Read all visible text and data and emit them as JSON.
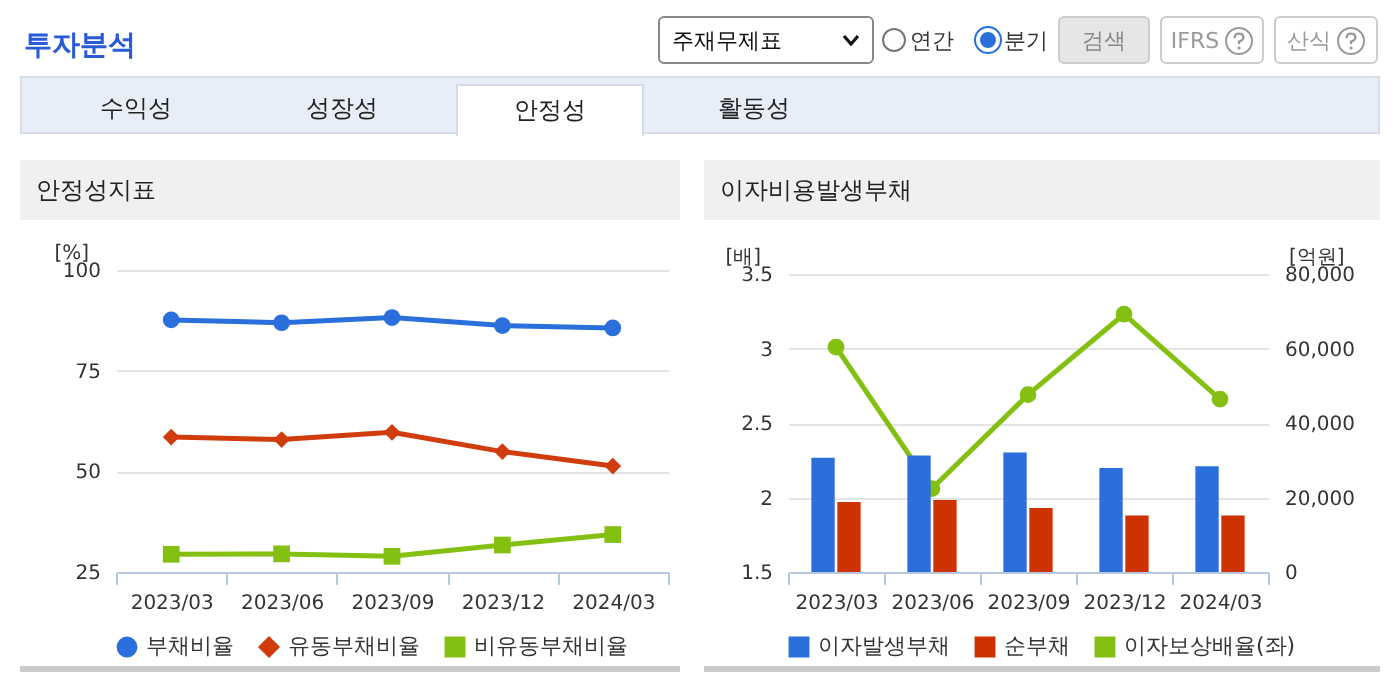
{
  "chart_data": [
    {
      "type": "other",
      "title": "투자분석",
      "annotations": [
        "주재무제표",
        "연간",
        "분기",
        "검색",
        "IFRS",
        "산식",
        "수익성",
        "성장성",
        "안정성",
        "활동성"
      ]
    },
    {
      "type": "line",
      "title": "안정성지표",
      "ylabel": "[%]",
      "categories": [
        "2023/03",
        "2023/06",
        "2023/09",
        "2023/12",
        "2024/03"
      ],
      "series": [
        {
          "name": "부채비율",
          "color": "#2a6fdb",
          "marker": "circle",
          "values": [
            87.6,
            86.9,
            88.2,
            86.2,
            85.6
          ]
        },
        {
          "name": "유동부채비율",
          "color": "#d03c0c",
          "marker": "diamond",
          "values": [
            58.5,
            57.9,
            59.7,
            54.9,
            51.3
          ]
        },
        {
          "name": "비유동부채비율",
          "color": "#84c011",
          "marker": "square",
          "values": [
            29.4,
            29.5,
            28.9,
            31.7,
            34.3
          ]
        }
      ],
      "ylim": [
        25,
        100
      ],
      "yticks": [
        25,
        50,
        75,
        100
      ],
      "grid": "y",
      "legend": "bottom"
    },
    {
      "type": "bar",
      "title": "이자비용발생부채",
      "ylabel": "[배]",
      "y2label": "[억원]",
      "categories": [
        "2023/03",
        "2023/06",
        "2023/09",
        "2023/12",
        "2024/03"
      ],
      "series": [
        {
          "name": "이자발생부채",
          "color": "#2a6fdb",
          "axis": "y2",
          "values": [
            30700,
            31300,
            32100,
            27900,
            28400
          ]
        },
        {
          "name": "순부채",
          "color": "#cc3300",
          "axis": "y2",
          "values": [
            18800,
            19300,
            17200,
            15200,
            15200
          ]
        },
        {
          "name": "이자보상배율(좌)",
          "type": "line",
          "color": "#84c011",
          "marker": "circle",
          "values": [
            3.01,
            2.06,
            2.69,
            3.23,
            2.66
          ]
        }
      ],
      "ylim": [
        1.5,
        3.5
      ],
      "yticks": [
        1.5,
        2,
        2.5,
        3,
        3.5
      ],
      "y2lim": [
        0,
        80000
      ],
      "y2ticks": [
        {
          "value": 0,
          "label": "0"
        },
        {
          "value": 20000,
          "label": "20,000"
        },
        {
          "value": 40000,
          "label": "40,000"
        },
        {
          "value": 60000,
          "label": "60,000"
        },
        {
          "value": 80000,
          "label": "80,000"
        }
      ],
      "grid": "y",
      "legend": "bottom"
    }
  ]
}
